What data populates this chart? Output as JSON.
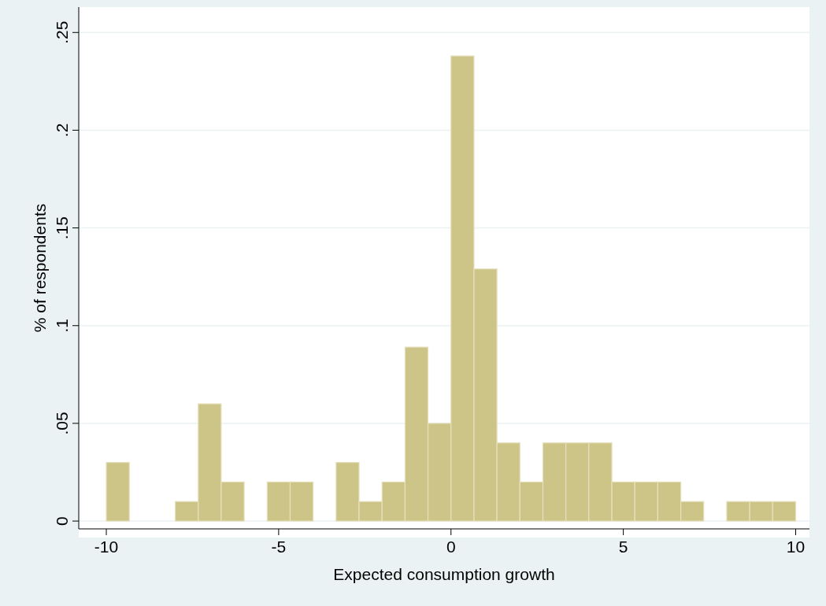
{
  "chart_data": {
    "type": "histogram",
    "xlabel": "Expected consumption growth",
    "ylabel": "% of respondents",
    "bins": [
      -10,
      -9.333,
      -8.667,
      -8,
      -7.333,
      -6.667,
      -6,
      -5.333,
      -4.667,
      -4,
      -3.333,
      -2.667,
      -2,
      -1.333,
      -0.667,
      0,
      0.667,
      1.333,
      2,
      2.667,
      3.333,
      4,
      4.667,
      5.333,
      6,
      6.667,
      7.333,
      8,
      8.667,
      9.333,
      10
    ],
    "values": [
      0.03,
      0,
      0,
      0.01,
      0.06,
      0.02,
      0,
      0.02,
      0.02,
      0,
      0.03,
      0.01,
      0.02,
      0.089,
      0.05,
      0.238,
      0.129,
      0.04,
      0.02,
      0.04,
      0.04,
      0.04,
      0.02,
      0.02,
      0.02,
      0.01,
      0,
      0.01,
      0.01,
      0.01
    ],
    "color": "#cdc488",
    "xlim": [
      -10.8,
      10.4
    ],
    "ylim": [
      -0.004,
      0.263
    ],
    "xticks": [
      -10,
      -5,
      0,
      5,
      10
    ],
    "yticks": [
      0,
      {
        "value": 0.05,
        "label": ".05"
      },
      {
        "value": 0.1,
        "label": ".1"
      },
      {
        "value": 0.15,
        "label": ".15"
      },
      {
        "value": 0.2,
        "label": ".2"
      },
      {
        "value": 0.25,
        "label": ".25"
      }
    ],
    "grid": "y"
  }
}
